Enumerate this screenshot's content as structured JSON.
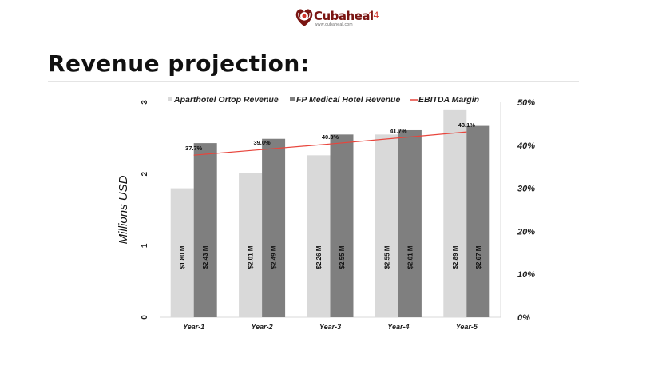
{
  "brand": {
    "name": "Cubaheal",
    "url": "www.cubaheal.com",
    "colors": {
      "dark_red": "#7a1512",
      "accent_red": "#d1332a"
    },
    "icon": "heart-stethoscope-icon"
  },
  "page": {
    "number": "14",
    "title": "Revenue projection:"
  },
  "chart_data": {
    "type": "bar",
    "title": "",
    "categories": [
      "Year-1",
      "Year-2",
      "Year-3",
      "Year-4",
      "Year-5"
    ],
    "series": [
      {
        "name": "Aparthotel Ortop Revenue",
        "kind": "bar",
        "axis": "left",
        "color": "#d9d9d9",
        "values": [
          1.8,
          2.01,
          2.26,
          2.55,
          2.89
        ],
        "labels": [
          "$1.80 M",
          "$2.01 M",
          "$2.26 M",
          "$2.55 M",
          "$2.89 M"
        ]
      },
      {
        "name": "FP Medical Hotel Revenue",
        "kind": "bar",
        "axis": "left",
        "color": "#7f7f7f",
        "values": [
          2.43,
          2.49,
          2.55,
          2.61,
          2.67
        ],
        "labels": [
          "$2.43 M",
          "$2.49 M",
          "$2.55 M",
          "$2.61 M",
          "$2.67 M"
        ]
      },
      {
        "name": "EBITDA Margin",
        "kind": "line",
        "axis": "right",
        "color": "#e8453c",
        "values": [
          37.7,
          39.0,
          40.3,
          41.7,
          43.1
        ],
        "labels": [
          "37.7%",
          "39.0%",
          "40.3%",
          "41.7%",
          "43.1%"
        ]
      }
    ],
    "ylabel": "Millions USD",
    "ylim": [
      0,
      3
    ],
    "y_ticks": [
      "0",
      "1",
      "2",
      "3"
    ],
    "y2lim": [
      0,
      50
    ],
    "y2_ticks": [
      "0%",
      "10%",
      "20%",
      "30%",
      "40%",
      "50%"
    ],
    "legend_position": "top",
    "grid": false
  }
}
